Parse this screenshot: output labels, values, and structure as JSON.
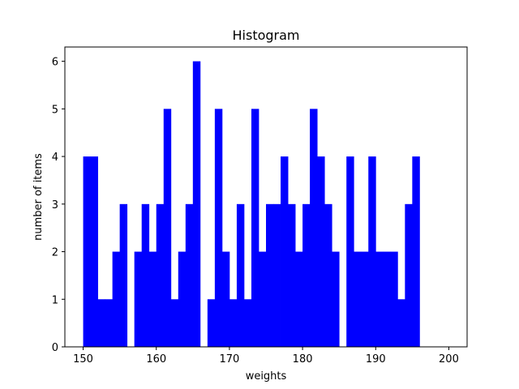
{
  "chart_data": {
    "type": "bar",
    "title": "Histogram",
    "xlabel": "weights",
    "ylabel": "number of items",
    "xlim": [
      147.5,
      202.5
    ],
    "ylim": [
      0,
      6.3
    ],
    "x_ticks": [
      150,
      160,
      170,
      180,
      190,
      200
    ],
    "y_ticks": [
      0,
      1,
      2,
      3,
      4,
      5,
      6
    ],
    "bin_start": 150,
    "bin_end": 200,
    "bin_count": 50,
    "values": [
      4,
      4,
      1,
      1,
      2,
      3,
      0,
      2,
      3,
      2,
      3,
      5,
      1,
      2,
      3,
      6,
      0,
      1,
      5,
      2,
      1,
      3,
      1,
      5,
      2,
      3,
      3,
      4,
      3,
      2,
      3,
      5,
      4,
      3,
      2,
      0,
      4,
      2,
      2,
      4,
      2,
      2,
      2,
      1,
      3,
      4,
      0,
      0,
      0,
      0
    ],
    "bar_color": "#0000ff",
    "grid": false,
    "legend": "none"
  }
}
